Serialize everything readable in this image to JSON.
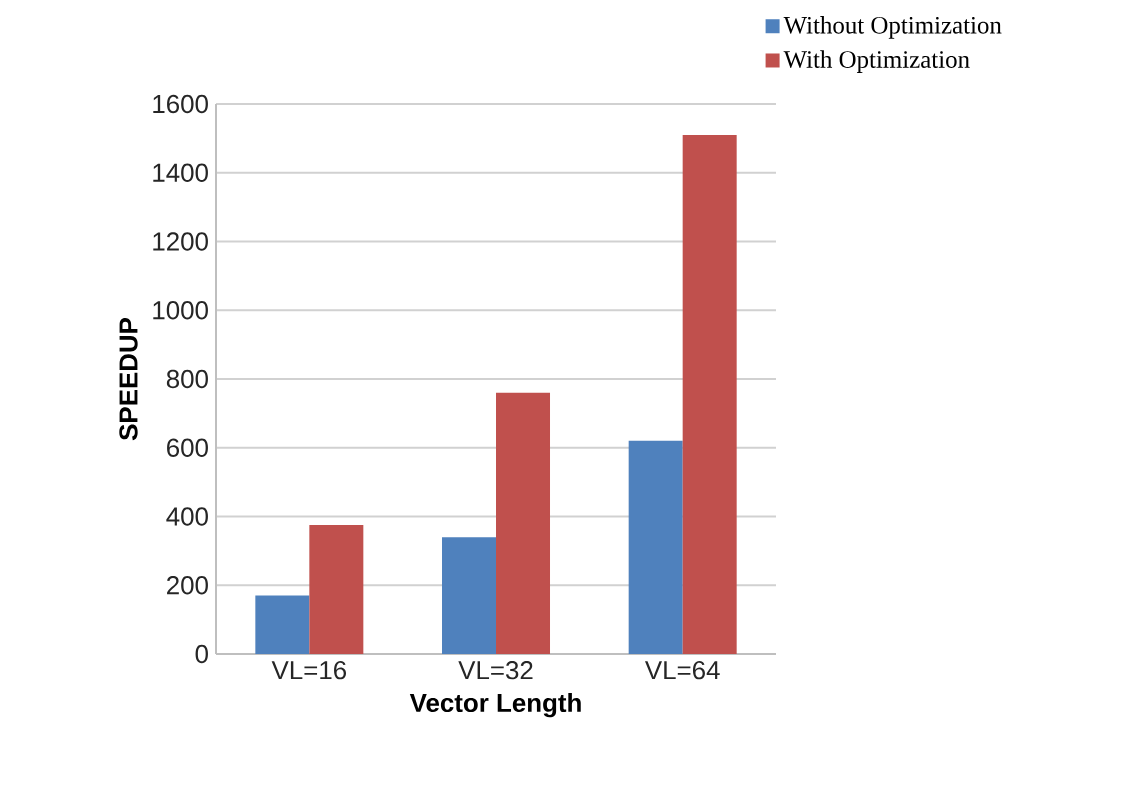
{
  "chart_data": {
    "type": "bar",
    "xlabel": "Vector Length",
    "ylabel": "SPEEDUP",
    "categories": [
      "VL=16",
      "VL=32",
      "VL=64"
    ],
    "series": [
      {
        "name": "Without Optimization",
        "color": "#4f81bd",
        "values": [
          170,
          340,
          620
        ]
      },
      {
        "name": "With Optimization",
        "color": "#c0504d",
        "values": [
          375,
          760,
          1510
        ]
      }
    ],
    "ylim": [
      0,
      1600
    ],
    "yticks": [
      0,
      200,
      400,
      600,
      800,
      1000,
      1200,
      1400,
      1600
    ],
    "grid": "y",
    "legend": "top right"
  }
}
